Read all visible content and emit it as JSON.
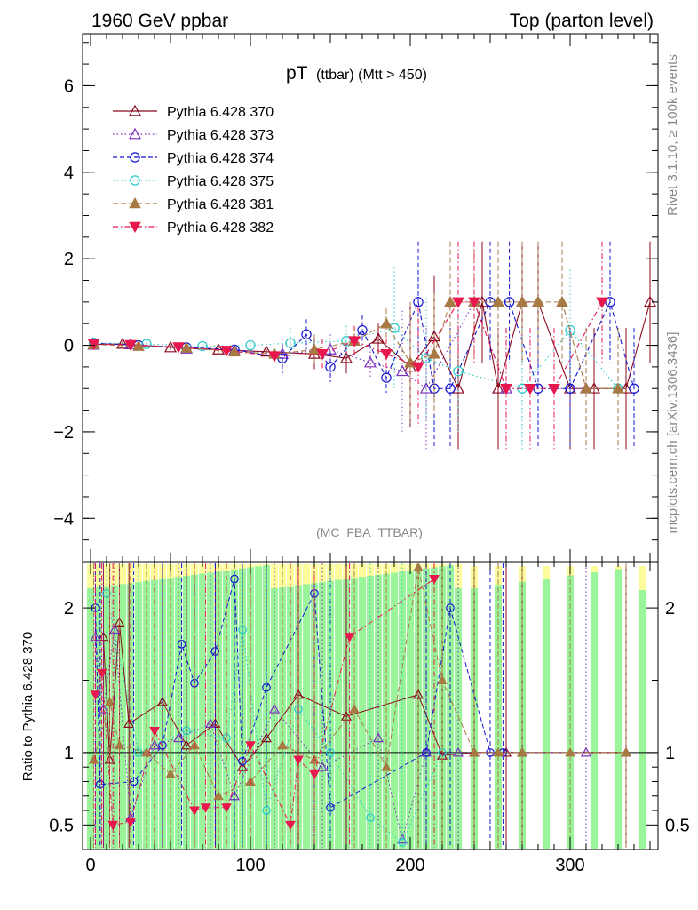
{
  "header": {
    "left": "1960 GeV ppbar",
    "right": "Top (parton level)"
  },
  "side_labels": {
    "rivet": "Rivet 3.1.10, ≥ 100k events",
    "mcplots": "mcplots.cern.ch [arXiv:1306.3436]"
  },
  "chart_data": [
    {
      "type": "scatter",
      "title_main": "pT",
      "title_sub": "(ttbar) (Mtt > 450)",
      "analysis_tag": "(MC_FBA_TTBAR)",
      "xlabel": "",
      "ylabel": "",
      "xlim": [
        -5,
        355
      ],
      "ylim": [
        -5,
        7.2
      ],
      "x_ticks": [
        0,
        100,
        200,
        300
      ],
      "y_ticks": [
        -4,
        -2,
        0,
        2,
        4,
        6
      ],
      "y_tick_labels": [
        "−4",
        "−2",
        "0",
        "2",
        "4",
        "6"
      ],
      "legend_position": "top-left",
      "series": [
        {
          "name": "Pythia 6.428 370",
          "color": "#8b0a1e",
          "marker": "triangle-open",
          "dash": "",
          "points": [
            [
              2,
              0.02
            ],
            [
              20,
              0.03
            ],
            [
              50,
              -0.05
            ],
            [
              80,
              -0.1
            ],
            [
              110,
              -0.15
            ],
            [
              140,
              -0.2
            ],
            [
              160,
              -0.3
            ],
            [
              180,
              0.15
            ],
            [
              200,
              -0.5
            ],
            [
              215,
              0.2
            ],
            [
              230,
              -1
            ],
            [
              245,
              1
            ],
            [
              255,
              -1
            ],
            [
              270,
              1
            ],
            [
              280,
              1
            ],
            [
              300,
              -1
            ],
            [
              315,
              -1
            ],
            [
              335,
              -1
            ],
            [
              350,
              1
            ]
          ]
        },
        {
          "name": "Pythia 6.428 373",
          "color": "#7b2fbe",
          "marker": "triangle-open",
          "dash": "1.5,3",
          "points": [
            [
              2,
              0.01
            ],
            [
              25,
              0.02
            ],
            [
              60,
              -0.08
            ],
            [
              90,
              -0.12
            ],
            [
              120,
              -0.2
            ],
            [
              150,
              -0.1
            ],
            [
              175,
              -0.4
            ],
            [
              195,
              -0.6
            ],
            [
              210,
              -1
            ],
            [
              240,
              1
            ],
            [
              260,
              -1
            ],
            [
              310,
              -1
            ]
          ]
        },
        {
          "name": "Pythia 6.428 374",
          "color": "#1515d0",
          "marker": "circle-open",
          "dash": "5,3",
          "points": [
            [
              2,
              0.05
            ],
            [
              30,
              0.0
            ],
            [
              60,
              -0.05
            ],
            [
              90,
              -0.1
            ],
            [
              120,
              -0.3
            ],
            [
              135,
              0.25
            ],
            [
              150,
              -0.5
            ],
            [
              170,
              0.35
            ],
            [
              185,
              -0.75
            ],
            [
              205,
              1
            ],
            [
              215,
              -1
            ],
            [
              225,
              -1
            ],
            [
              250,
              1
            ],
            [
              262,
              1
            ],
            [
              280,
              -1
            ],
            [
              300,
              -1
            ],
            [
              325,
              1
            ],
            [
              340,
              -1
            ]
          ]
        },
        {
          "name": "Pythia 6.428 375",
          "color": "#27c7c7",
          "marker": "circle-open",
          "dash": "1.5,3",
          "points": [
            [
              2,
              0.06
            ],
            [
              35,
              0.03
            ],
            [
              70,
              -0.02
            ],
            [
              100,
              0.0
            ],
            [
              125,
              0.05
            ],
            [
              160,
              0.1
            ],
            [
              190,
              0.4
            ],
            [
              210,
              -0.3
            ],
            [
              230,
              -0.6
            ],
            [
              270,
              -1
            ],
            [
              300,
              0.35
            ],
            [
              330,
              -1
            ]
          ]
        },
        {
          "name": "Pythia 6.428 381",
          "color": "#a87a43",
          "marker": "triangle-filled",
          "dash": "6,3",
          "points": [
            [
              2,
              0.02
            ],
            [
              30,
              -0.02
            ],
            [
              60,
              -0.06
            ],
            [
              90,
              -0.15
            ],
            [
              115,
              -0.2
            ],
            [
              140,
              -0.1
            ],
            [
              165,
              0.1
            ],
            [
              185,
              0.5
            ],
            [
              200,
              -0.4
            ],
            [
              215,
              -0.2
            ],
            [
              225,
              1
            ],
            [
              240,
              1
            ],
            [
              255,
              1
            ],
            [
              270,
              1
            ],
            [
              280,
              1
            ],
            [
              295,
              1
            ],
            [
              310,
              -1
            ],
            [
              330,
              -1
            ]
          ]
        },
        {
          "name": "Pythia 6.428 382",
          "color": "#e8174e",
          "marker": "triangle-down-filled",
          "dash": "6,3,1.5,3",
          "points": [
            [
              2,
              0.03
            ],
            [
              25,
              0.01
            ],
            [
              55,
              -0.04
            ],
            [
              85,
              -0.12
            ],
            [
              115,
              -0.25
            ],
            [
              145,
              -0.2
            ],
            [
              165,
              0.1
            ],
            [
              185,
              -0.2
            ],
            [
              205,
              -0.5
            ],
            [
              230,
              1
            ],
            [
              240,
              1
            ],
            [
              260,
              -1
            ],
            [
              275,
              -1
            ],
            [
              290,
              -1
            ],
            [
              320,
              1
            ]
          ]
        }
      ]
    },
    {
      "type": "scatter",
      "xlabel": "",
      "ylabel": "Ratio to Pythia 6.428 370",
      "xlim": [
        -5,
        355
      ],
      "ylim": [
        0.33,
        2.32
      ],
      "x_ticks": [
        0,
        100,
        200,
        300
      ],
      "y_ticks": [
        0.5,
        1,
        2
      ],
      "y_tick_labels": [
        "0.5",
        "1",
        "2"
      ],
      "reference_line": 1,
      "band_color": "#9af59a",
      "band_color_outer": "#fdfd9c",
      "series_markers": [
        {
          "color": "#8b0a1e",
          "x": [
            8,
            12,
            18,
            24,
            45,
            60,
            78,
            95,
            110,
            130,
            160,
            205,
            220,
            240,
            260,
            270,
            335
          ],
          "y": [
            1.8,
            0.95,
            1.9,
            1.2,
            1.35,
            1.05,
            1.2,
            0.9,
            1.1,
            1.4,
            1.25,
            1.4,
            0.98,
            1.0,
            1.0,
            1.0,
            1.0
          ]
        },
        {
          "color": "#7b2fbe",
          "x": [
            3,
            8,
            15,
            25,
            40,
            55,
            75,
            90,
            115,
            145,
            180,
            195,
            210,
            230,
            310
          ],
          "y": [
            1.8,
            1.3,
            1.85,
            0.55,
            1.05,
            1.1,
            1.2,
            0.7,
            1.3,
            0.9,
            1.1,
            0.4,
            1.0,
            1.0,
            1.0
          ]
        },
        {
          "color": "#1515d0",
          "x": [
            3,
            6,
            27,
            45,
            57,
            65,
            78,
            90,
            95,
            110,
            140,
            150,
            210,
            225,
            250,
            258
          ],
          "y": [
            2.0,
            0.78,
            0.8,
            1.05,
            1.75,
            1.48,
            1.7,
            2.2,
            0.94,
            1.45,
            2.1,
            0.62,
            1.0,
            2.0,
            1.0,
            1.0
          ]
        },
        {
          "color": "#27c7c7",
          "x": [
            10,
            30,
            60,
            85,
            95,
            110,
            130,
            150,
            175,
            195,
            220
          ],
          "y": [
            2.1,
            1.0,
            1.15,
            1.1,
            1.85,
            0.6,
            1.3,
            1.0,
            0.55,
            0.38,
            1.0
          ]
        },
        {
          "color": "#a87a43",
          "x": [
            2,
            12,
            18,
            35,
            50,
            65,
            80,
            100,
            120,
            140,
            165,
            185,
            205,
            220,
            240,
            255,
            270,
            300,
            335
          ],
          "y": [
            0.95,
            1.35,
            1.05,
            1.0,
            0.85,
            1.05,
            0.7,
            0.8,
            1.05,
            0.95,
            1.3,
            0.9,
            2.28,
            1.5,
            1.0,
            1.0,
            1.0,
            1.0,
            1.0
          ]
        },
        {
          "color": "#e8174e",
          "x": [
            3,
            7,
            14,
            25,
            40,
            65,
            72,
            85,
            100,
            125,
            130,
            140,
            162,
            215
          ],
          "y": [
            1.4,
            1.55,
            0.5,
            0.52,
            1.15,
            0.6,
            0.62,
            0.62,
            1.05,
            0.5,
            0.95,
            0.85,
            1.8,
            2.2
          ]
        }
      ]
    }
  ]
}
